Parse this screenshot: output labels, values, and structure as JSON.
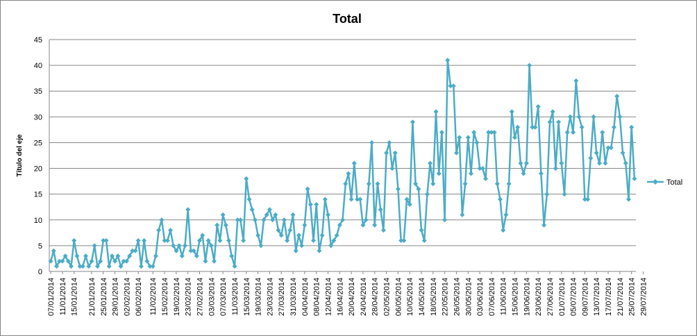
{
  "chart_data": {
    "type": "line",
    "title": "Total",
    "ylabel": "Título del eje",
    "xlabel": "",
    "ylim": [
      0,
      45
    ],
    "y_ticks": [
      0,
      5,
      10,
      15,
      20,
      25,
      30,
      35,
      40,
      45
    ],
    "grid": "horizontal",
    "legend_position": "right",
    "series_color": "#4BACC6",
    "x_start": "07/01/2014",
    "x_tick_labels": [
      "07/01/2014",
      "11/01/2014",
      "15/01/2014",
      "21/01/2014",
      "25/01/2014",
      "29/01/2014",
      "02/02/2014",
      "06/02/2014",
      "11/02/2014",
      "15/02/2014",
      "19/02/2014",
      "23/02/2014",
      "27/02/2014",
      "03/03/2014",
      "07/03/2014",
      "11/03/2014",
      "15/03/2014",
      "19/03/2014",
      "23/03/2014",
      "27/03/2014",
      "31/03/2014",
      "04/04/2014",
      "08/04/2014",
      "12/04/2014",
      "16/04/2014",
      "20/04/2014",
      "24/04/2014",
      "28/04/2014",
      "02/05/2014",
      "06/05/2014",
      "10/05/2014",
      "14/05/2014",
      "18/05/2014",
      "22/05/2014",
      "26/05/2014",
      "30/05/2014",
      "03/06/2014",
      "07/06/2014",
      "11/06/2014",
      "15/06/2014",
      "19/06/2014",
      "23/06/2014",
      "27/06/2014",
      "01/07/2014",
      "05/07/2014",
      "09/07/2014",
      "13/07/2014",
      "17/07/2014",
      "21/07/2014",
      "25/07/2014",
      "29/07/2014"
    ],
    "series": [
      {
        "name": "Total",
        "values": [
          2,
          4,
          1,
          2,
          2,
          3,
          2,
          1,
          6,
          3,
          1,
          1,
          3,
          1,
          2,
          5,
          1,
          2,
          6,
          6,
          1,
          3,
          2,
          3,
          1,
          2,
          2,
          3,
          4,
          4,
          6,
          1,
          6,
          2,
          1,
          1,
          3,
          8,
          10,
          6,
          6,
          8,
          5,
          4,
          5,
          3,
          5,
          12,
          4,
          4,
          3,
          6,
          7,
          2,
          6,
          5,
          2,
          9,
          6,
          11,
          9,
          6,
          3,
          1,
          10,
          10,
          6,
          18,
          14,
          12,
          10,
          7,
          5,
          10,
          11,
          12,
          10,
          11,
          8,
          7,
          10,
          6,
          8,
          11,
          4,
          7,
          5,
          9,
          16,
          13,
          6,
          13,
          4,
          7,
          14,
          11,
          5,
          6,
          7,
          9,
          10,
          17,
          19,
          14,
          21,
          14,
          14,
          9,
          10,
          17,
          25,
          9,
          17,
          12,
          8,
          23,
          25,
          20,
          23,
          16,
          6,
          6,
          14,
          13,
          29,
          17,
          16,
          8,
          6,
          15,
          21,
          17,
          31,
          19,
          27,
          10,
          41,
          36,
          36,
          23,
          26,
          11,
          17,
          26,
          19,
          27,
          25,
          20,
          20,
          18,
          27,
          27,
          27,
          17,
          14,
          8,
          11,
          17,
          31,
          26,
          28,
          21,
          19,
          21,
          40,
          28,
          28,
          32,
          19,
          9,
          15,
          29,
          31,
          20,
          29,
          21,
          15,
          27,
          30,
          27,
          37,
          30,
          28,
          14,
          14,
          22,
          30,
          23,
          21,
          27,
          21,
          24,
          24,
          28,
          34,
          30,
          23,
          21,
          14,
          28,
          18
        ]
      }
    ]
  }
}
